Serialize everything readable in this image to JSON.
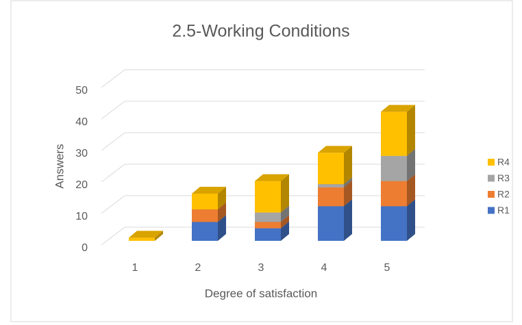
{
  "chart_data": {
    "type": "bar3d_stacked",
    "title": "2.5-Working Conditions",
    "xlabel": "Degree of satisfaction",
    "ylabel": "Answers",
    "categories": [
      "1",
      "2",
      "3",
      "4",
      "5"
    ],
    "series": [
      {
        "name": "R1",
        "color": "#4472c4",
        "values": [
          0,
          6,
          4,
          11,
          11
        ]
      },
      {
        "name": "R2",
        "color": "#ed7d31",
        "values": [
          0,
          4,
          2,
          6,
          8
        ]
      },
      {
        "name": "R3",
        "color": "#a5a5a5",
        "values": [
          0,
          0,
          3,
          1,
          8
        ]
      },
      {
        "name": "R4",
        "color": "#ffc000",
        "values": [
          1,
          5,
          10,
          10,
          14
        ]
      }
    ],
    "ylim": [
      0,
      50
    ],
    "yticks": [
      0,
      10,
      20,
      30,
      40,
      50
    ],
    "grid": true,
    "legend": "right"
  }
}
